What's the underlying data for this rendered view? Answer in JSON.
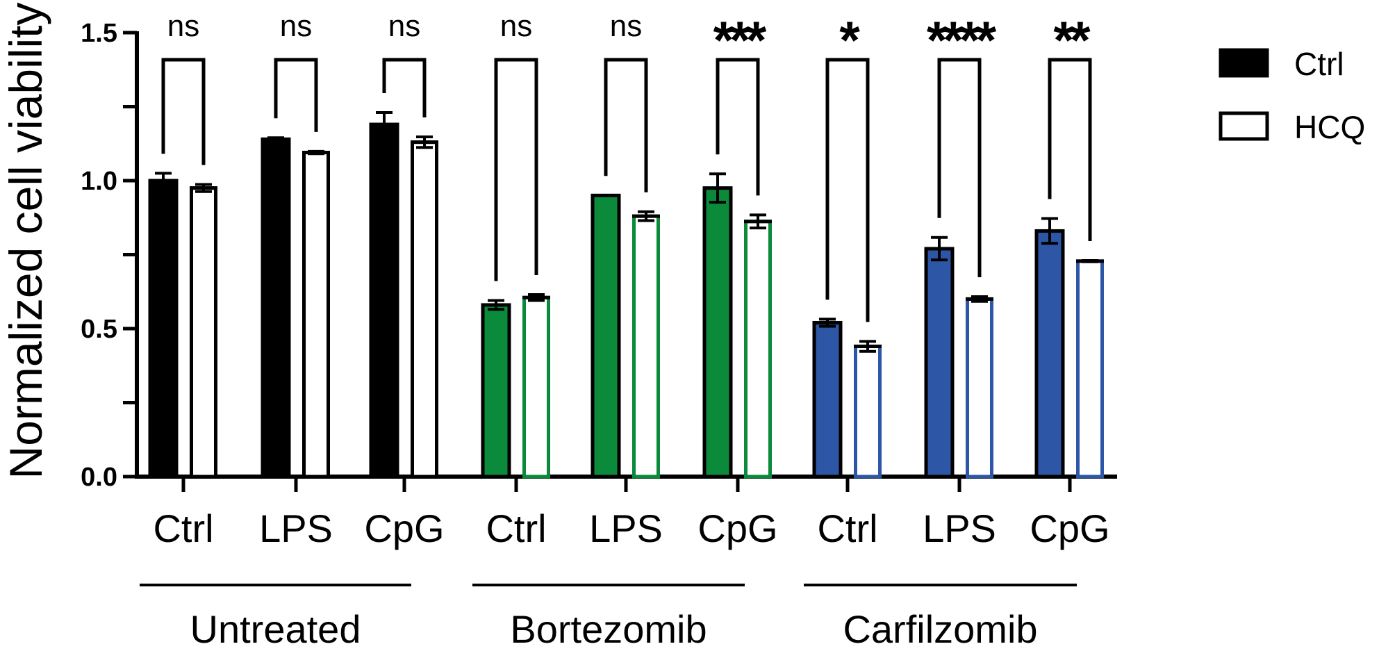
{
  "chart_data": {
    "type": "bar",
    "ylabel": "Normalized cell viability",
    "xlabel": "",
    "ylim": [
      0,
      1.5
    ],
    "yticks": [
      0.0,
      0.5,
      1.0,
      1.5
    ],
    "ytick_labels": [
      "0.0",
      "0.5",
      "1.0",
      "1.5"
    ],
    "categories": [
      "Ctrl",
      "LPS",
      "CpG",
      "Ctrl",
      "LPS",
      "CpG",
      "Ctrl",
      "LPS",
      "CpG"
    ],
    "groups": [
      {
        "label": "Untreated",
        "color": "#000000",
        "categories": [
          "Ctrl",
          "LPS",
          "CpG"
        ]
      },
      {
        "label": "Bortezomib",
        "color": "#0a8a3a",
        "categories": [
          "Ctrl",
          "LPS",
          "CpG"
        ]
      },
      {
        "label": "Carfilzomib",
        "color": "#2e56a6",
        "categories": [
          "Ctrl",
          "LPS",
          "CpG"
        ]
      }
    ],
    "series": [
      {
        "name": "Ctrl",
        "fill": "solid",
        "values": [
          1.0,
          1.14,
          1.19,
          0.58,
          0.95,
          0.975,
          0.52,
          0.77,
          0.83
        ],
        "errors": [
          0.025,
          0.005,
          0.04,
          0.015,
          0.0,
          0.048,
          0.012,
          0.038,
          0.042
        ]
      },
      {
        "name": "HCQ",
        "fill": "open",
        "values": [
          0.975,
          1.095,
          1.13,
          0.605,
          0.88,
          0.862,
          0.44,
          0.6,
          0.728
        ],
        "errors": [
          0.012,
          0.004,
          0.018,
          0.01,
          0.015,
          0.022,
          0.017,
          0.008,
          0.002
        ]
      }
    ],
    "significance": [
      "ns",
      "ns",
      "ns",
      "ns",
      "ns",
      "***",
      "*",
      "****",
      "**"
    ],
    "legend": {
      "position": "top-right",
      "entries": [
        "Ctrl",
        "HCQ"
      ]
    },
    "grid": false
  }
}
